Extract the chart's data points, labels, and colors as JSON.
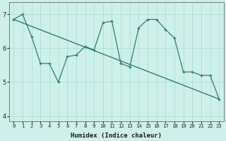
{
  "xlabel": "Humidex (Indice chaleur)",
  "ylabel": "",
  "bg_color": "#cff0ea",
  "line_color": "#2e7d6e",
  "grid_color": "#aaddd5",
  "x_data": [
    0,
    1,
    2,
    3,
    4,
    5,
    6,
    7,
    8,
    9,
    10,
    11,
    12,
    13,
    14,
    15,
    16,
    17,
    18,
    19,
    20,
    21,
    22,
    23
  ],
  "y_data": [
    6.85,
    7.0,
    6.35,
    5.55,
    5.55,
    5.0,
    5.75,
    5.8,
    6.05,
    5.95,
    6.75,
    6.8,
    5.55,
    5.45,
    6.6,
    6.85,
    6.85,
    6.55,
    6.3,
    5.3,
    5.3,
    5.2,
    5.2,
    4.5
  ],
  "trend_x": [
    0,
    23
  ],
  "trend_y": [
    6.85,
    4.5
  ],
  "xlim": [
    -0.5,
    23.5
  ],
  "ylim": [
    3.85,
    7.35
  ],
  "yticks": [
    4,
    5,
    6,
    7
  ],
  "xticks": [
    0,
    1,
    2,
    3,
    4,
    5,
    6,
    7,
    8,
    9,
    10,
    11,
    12,
    13,
    14,
    15,
    16,
    17,
    18,
    19,
    20,
    21,
    22,
    23
  ],
  "xlabel_fontsize": 6.5,
  "tick_fontsize": 5.2,
  "ytick_fontsize": 6.0
}
